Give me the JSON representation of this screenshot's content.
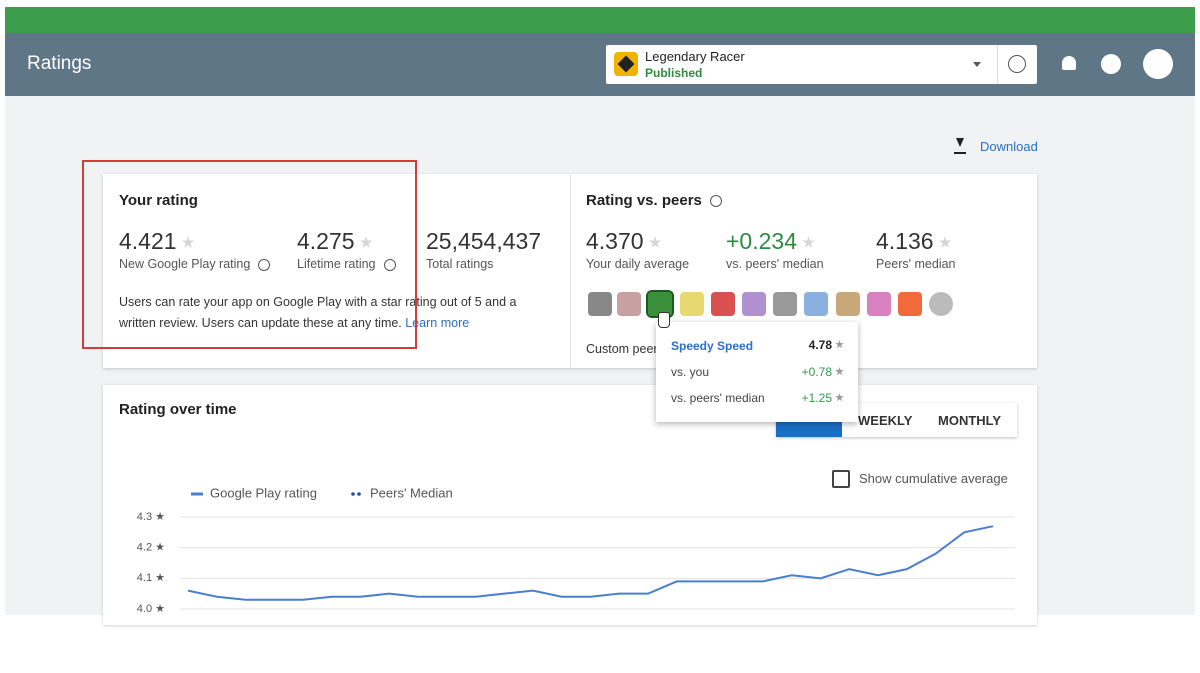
{
  "header": {
    "title": "Ratings",
    "app_name": "Legendary Racer",
    "app_status": "Published"
  },
  "download": "Download",
  "your_rating": {
    "title": "Your rating",
    "metrics": [
      {
        "value": "4.421",
        "label": "New Google Play rating"
      },
      {
        "value": "4.275",
        "label": "Lifetime rating"
      },
      {
        "value": "25,454,437",
        "label": "Total ratings"
      }
    ],
    "description": "Users can rate your app on Google Play with a star rating out of 5 and a written review. Users can update these at any time.",
    "link": "Learn more"
  },
  "rating_vs_peers": {
    "title": "Rating vs. peers",
    "metrics": [
      {
        "value": "4.370",
        "label": "Your daily average"
      },
      {
        "value": "+0.234",
        "label": "vs. peers' median"
      },
      {
        "value": "4.136",
        "label": "Peers' median"
      }
    ],
    "custom_peers": "Custom peer"
  },
  "tooltip": {
    "title": "Speedy Speed",
    "rating": "4.78",
    "rows": [
      {
        "label": "vs. you",
        "value": "+0.78"
      },
      {
        "label": "vs. peers' median",
        "value": "+1.25"
      }
    ]
  },
  "tabs": [
    "WEEKLY",
    "MONTHLY"
  ],
  "checkbox": "Show cumulative average",
  "chart_data": {
    "type": "line",
    "title": "Rating over time",
    "categories": [
      null,
      null,
      null,
      null,
      null,
      null,
      null,
      null,
      null,
      null,
      null,
      null,
      null,
      null,
      null,
      null,
      null,
      null,
      null,
      null,
      null,
      null,
      null,
      null,
      null,
      null,
      null,
      null,
      null
    ],
    "series": [
      {
        "name": "Google Play rating",
        "color": "#4a7fd0",
        "values": [
          4.06,
          4.04,
          4.03,
          4.03,
          4.03,
          4.04,
          4.04,
          4.05,
          4.04,
          4.04,
          4.04,
          4.05,
          4.06,
          4.04,
          4.04,
          4.05,
          4.05,
          4.09,
          4.09,
          4.09,
          4.09,
          4.11,
          4.1,
          4.13,
          4.11,
          4.13,
          4.18,
          4.25,
          4.27
        ]
      },
      {
        "name": "Peers' Median",
        "color": "#1a4ea8",
        "values": [
          null,
          null,
          null,
          null,
          null,
          null,
          null,
          null,
          null,
          null,
          null,
          null,
          null,
          null,
          null,
          null,
          null,
          null,
          null,
          null,
          null,
          null,
          null,
          null,
          null,
          null,
          null,
          null,
          null
        ]
      }
    ],
    "ylim": [
      4.0,
      4.3
    ],
    "yticks": [
      {
        "value": 4.0,
        "label": "4.0 ★"
      },
      {
        "value": 4.1,
        "label": "4.1 ★"
      },
      {
        "value": 4.2,
        "label": "4.2 ★"
      },
      {
        "value": 4.3,
        "label": "4.3 ★"
      }
    ],
    "grid": true
  }
}
